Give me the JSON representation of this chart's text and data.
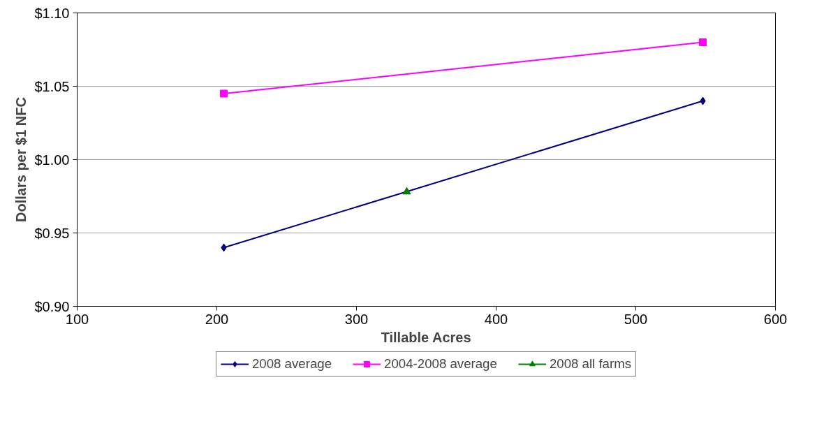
{
  "chart_data": {
    "type": "line",
    "xlabel": "Tillable Acres",
    "ylabel": "Dollars per $1 NFC",
    "xlim": [
      100,
      600
    ],
    "xticks": [
      100,
      200,
      300,
      400,
      500,
      600
    ],
    "ylim": [
      0.9,
      1.1
    ],
    "yticks": [
      {
        "value": 0.9,
        "label": "$0.90"
      },
      {
        "value": 0.95,
        "label": "$0.95"
      },
      {
        "value": 1.0,
        "label": "$1.00"
      },
      {
        "value": 1.05,
        "label": "$1.05"
      },
      {
        "value": 1.1,
        "label": "$1.10"
      }
    ],
    "grid": "y",
    "legend": "bottom",
    "line_style": "solid",
    "series": [
      {
        "name": "2008 average",
        "color": "#000080",
        "marker": "diamond",
        "x": [
          205,
          548
        ],
        "values": [
          0.94,
          1.04
        ]
      },
      {
        "name": "2004-2008 average",
        "color": "#ff00ff",
        "marker": "square",
        "x": [
          205,
          548
        ],
        "values": [
          1.045,
          1.08
        ]
      },
      {
        "name": "2008 all farms",
        "color": "#008000",
        "marker": "triangle",
        "x": [
          336
        ],
        "values": [
          0.978
        ]
      }
    ]
  }
}
